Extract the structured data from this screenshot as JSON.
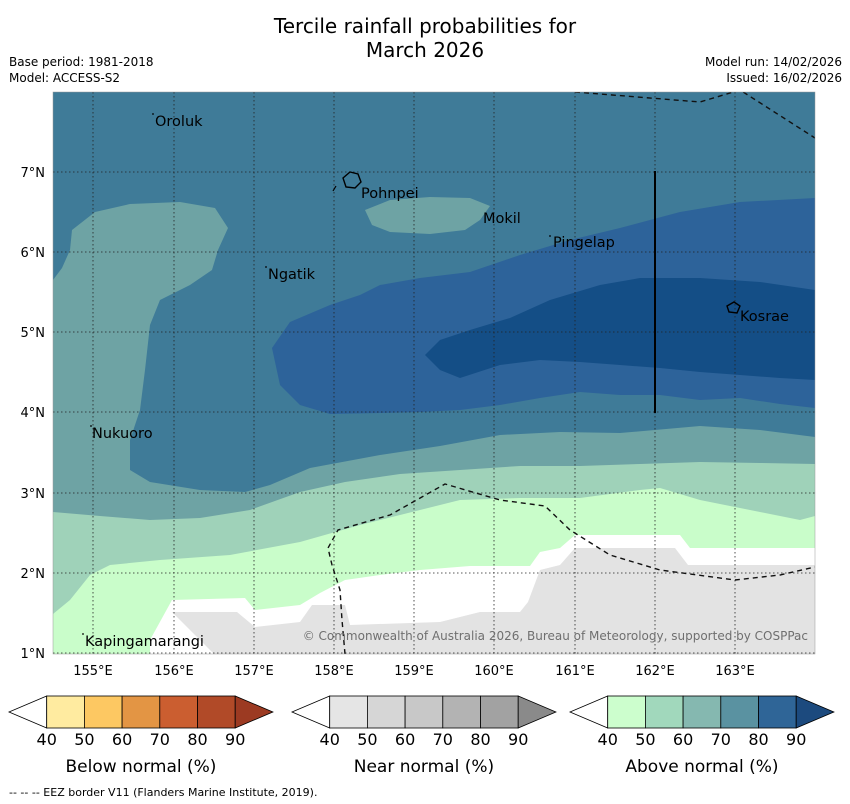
{
  "title_line1": "Tercile rainfall probabilities for",
  "title_line2": "March 2026",
  "base_period": "Base period: 1981-2018",
  "model": "Model: ACCESS-S2",
  "model_run": "Model run: 14/02/2026",
  "issued": "Issued: 16/02/2026",
  "copyright": "© Commonwealth of Australia 2026, Bureau of Meteorology, supported by COSPPac",
  "footer": "--  --  -- EEZ border V11 (Flanders Marine Institute, 2019).",
  "lon_ticks": [
    "155°E",
    "156°E",
    "157°E",
    "158°E",
    "159°E",
    "160°E",
    "161°E",
    "162°E",
    "163°E"
  ],
  "lat_ticks": [
    "7°N",
    "6°N",
    "5°N",
    "4°N",
    "3°N",
    "2°N",
    "1°N"
  ],
  "places": [
    "Oroluk",
    "Pohnpei",
    "Mokil",
    "Pingelap",
    "Ngatik",
    "Kosrae",
    "Nukuoro",
    "Kapingamarangi"
  ],
  "colorbars": [
    {
      "title": "Below normal (%)",
      "ticks": [
        "40",
        "50",
        "60",
        "70",
        "80",
        "90"
      ],
      "colors": [
        "#ffeba0",
        "#fdc862",
        "#e39544",
        "#cb5e30",
        "#b14a28",
        "#9c3a22"
      ]
    },
    {
      "title": "Near normal (%)",
      "ticks": [
        "40",
        "50",
        "60",
        "70",
        "80",
        "90"
      ],
      "colors": [
        "#e5e5e5",
        "#d6d6d6",
        "#c8c8c8",
        "#b3b3b3",
        "#a2a2a2",
        "#8a8a8a"
      ]
    },
    {
      "title": "Above normal (%)",
      "ticks": [
        "40",
        "50",
        "60",
        "70",
        "80",
        "90"
      ],
      "colors": [
        "#ccfecd",
        "#a1d8bc",
        "#85b8b0",
        "#5a92a1",
        "#2f6597",
        "#1c4a7e"
      ]
    }
  ],
  "map_colors": {
    "above_50": "#9fd2b9",
    "above_60": "#6ea3a4",
    "above_70": "#3f7b98",
    "above_80": "#2d639a",
    "above_90": "#144e86",
    "above_40": "#c9fdca",
    "near_40": "#e3e3e3",
    "no_dominant": "#ffffff"
  }
}
